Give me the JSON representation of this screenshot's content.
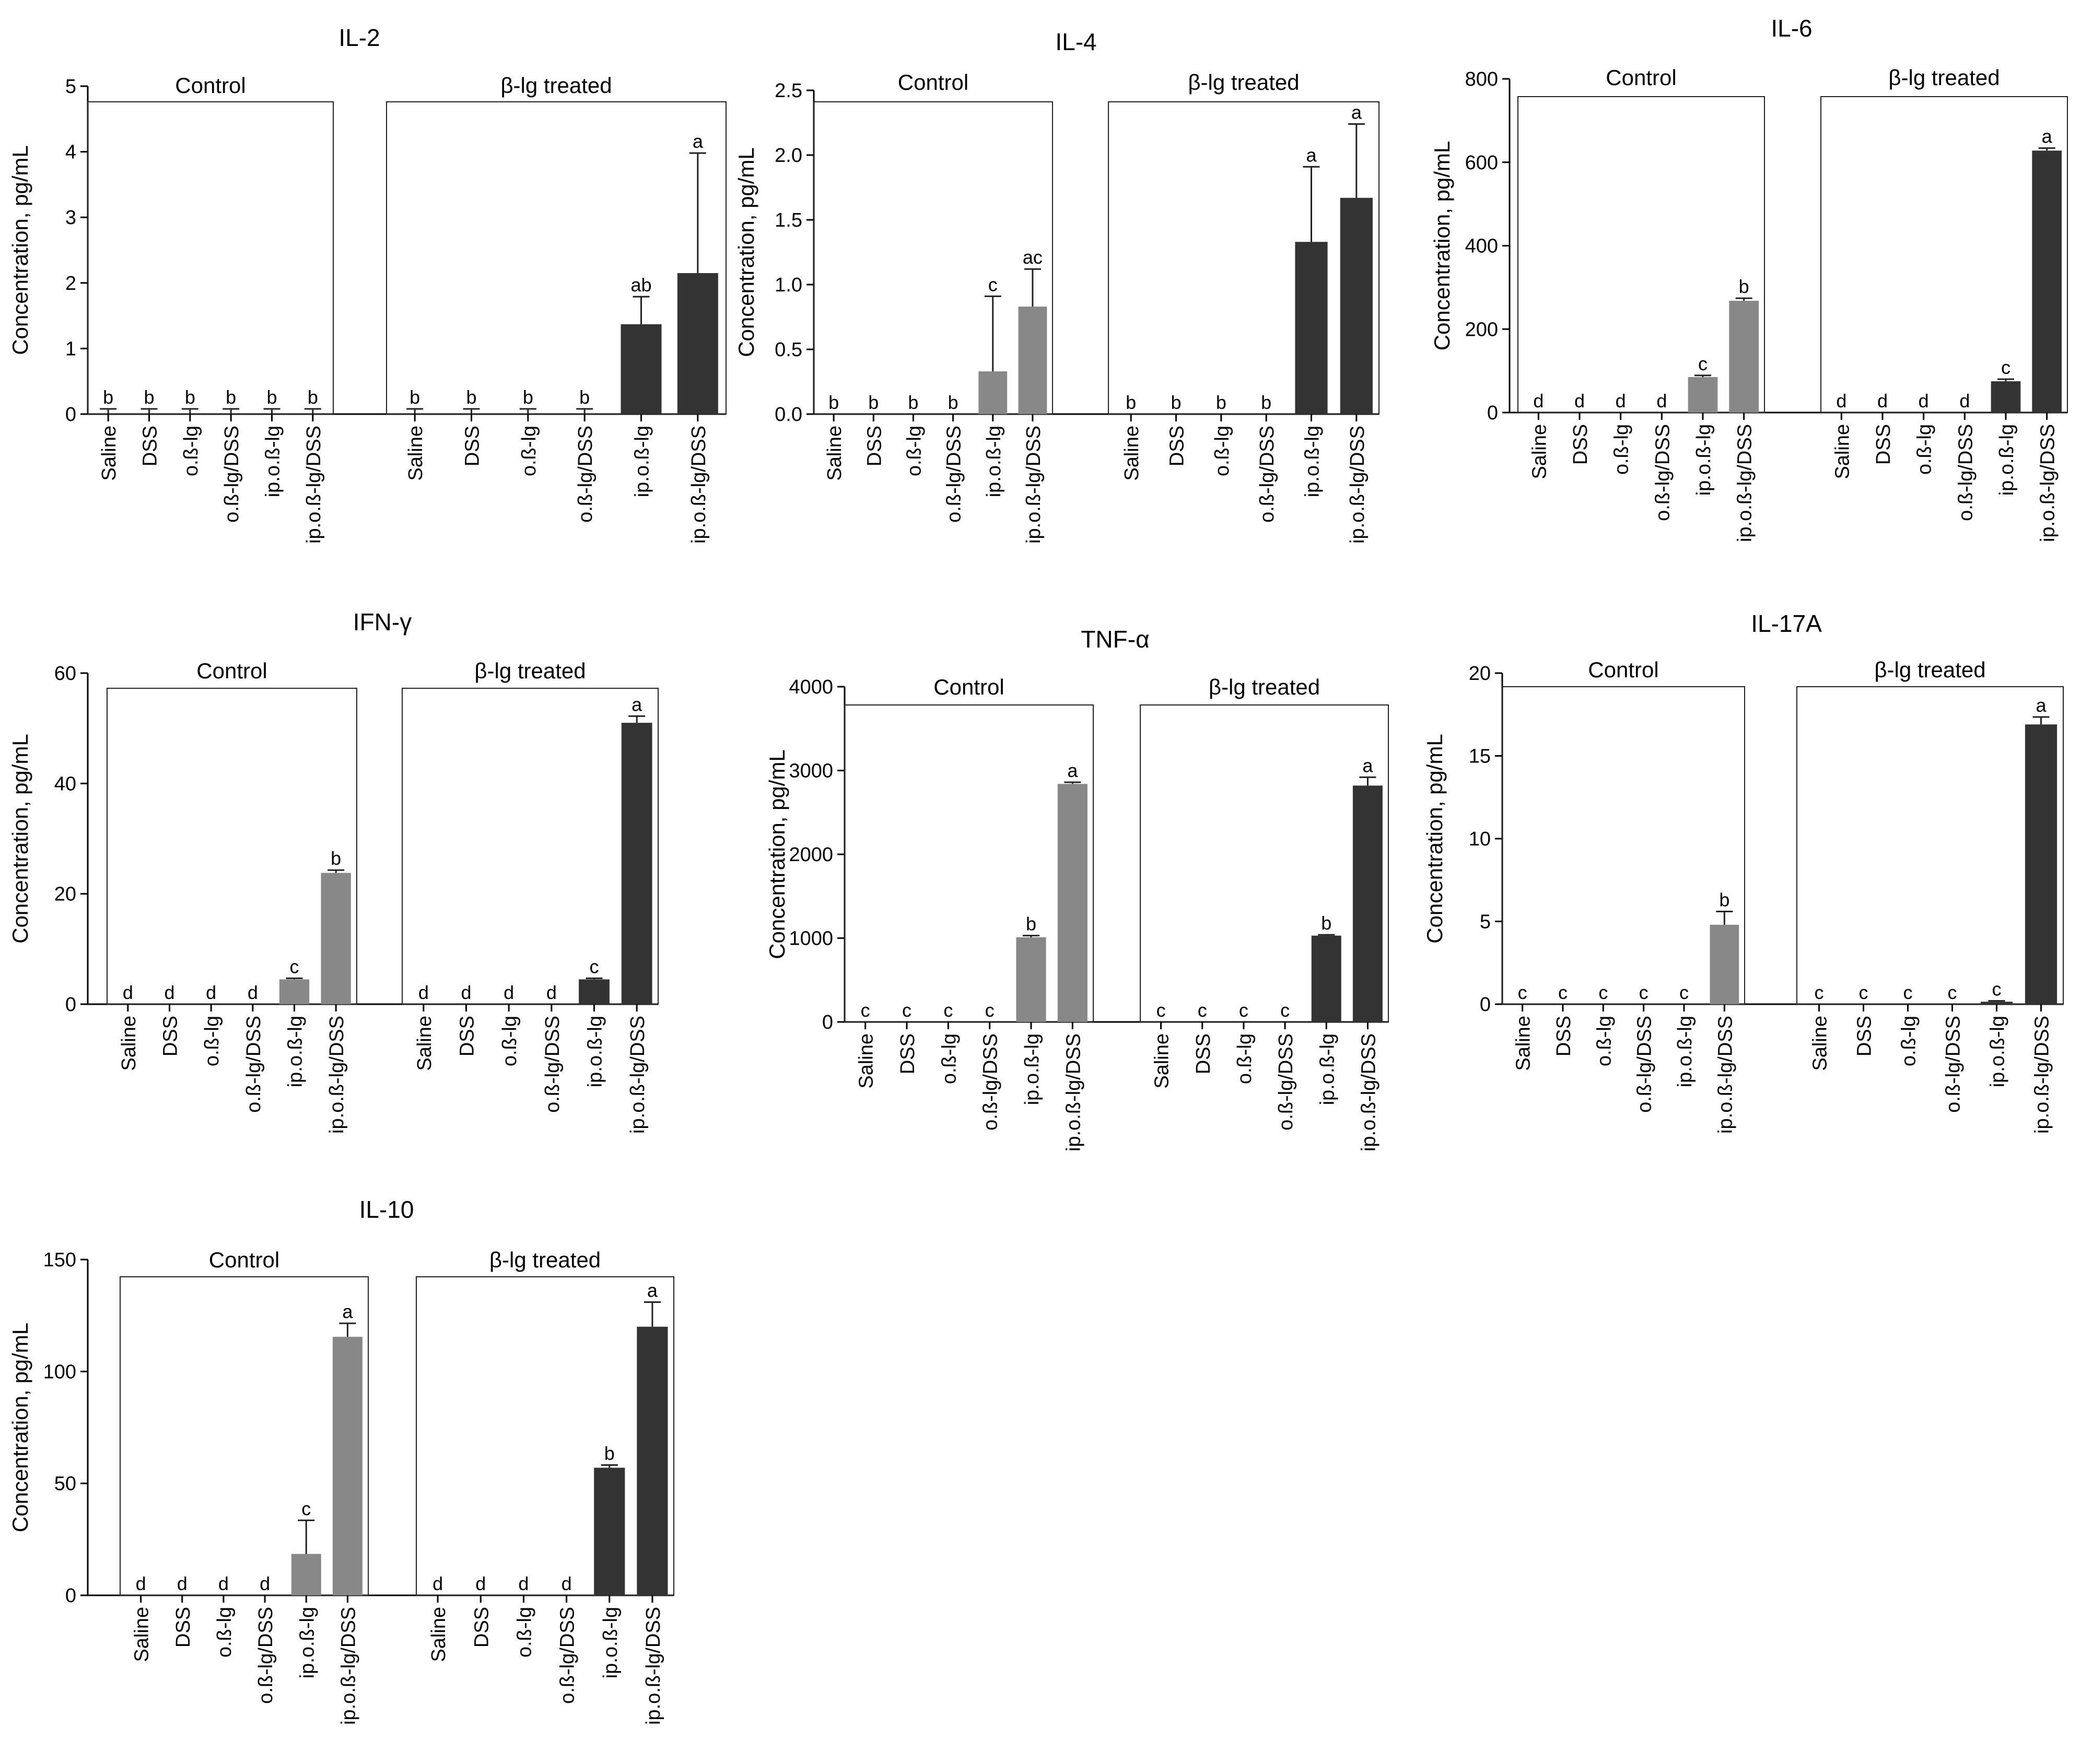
{
  "figure": {
    "y_axis_label": "Concentration, pg/mL",
    "group_labels": [
      "Control",
      "β-lg treated"
    ],
    "colors": {
      "control_bar": "#888888",
      "treated_bar": "#333333",
      "axis": "#000000"
    }
  },
  "chart_data": [
    {
      "type": "bar",
      "title": "IL-2",
      "ylabel": "Concentration, pg/mL",
      "ylim": [
        0,
        5
      ],
      "yticks": [
        0,
        1,
        2,
        3,
        4,
        5
      ],
      "tick_format": "int",
      "categories": [
        "Saline",
        "DSS",
        "o.ß-lg",
        "o.ß-lg/DSS",
        "ip.o.ß-lg",
        "ip.o.ß-lg/DSS"
      ],
      "series": [
        {
          "name": "Control",
          "values": [
            0,
            0,
            0,
            0,
            0,
            0
          ],
          "errors": [
            0.08,
            0.08,
            0.08,
            0.08,
            0.08,
            0.08
          ],
          "letters": [
            "b",
            "b",
            "b",
            "b",
            "b",
            "b"
          ]
        },
        {
          "name": "β-lg treated",
          "values": [
            0,
            0,
            0,
            0,
            1.37,
            2.15
          ],
          "errors": [
            0.08,
            0.08,
            0.08,
            0.08,
            0.42,
            1.83
          ],
          "letters": [
            "b",
            "b",
            "b",
            "b",
            "ab",
            "a"
          ]
        }
      ]
    },
    {
      "type": "bar",
      "title": "IL-4",
      "ylabel": "Concentration, pg/mL",
      "ylim": [
        0,
        2.5
      ],
      "yticks": [
        0,
        0.5,
        1,
        1.5,
        2,
        2.5
      ],
      "tick_format": "1dp",
      "categories": [
        "Saline",
        "DSS",
        "o.ß-lg",
        "o.ß-lg/DSS",
        "ip.o.ß-lg",
        "ip.o.ß-lg/DSS"
      ],
      "series": [
        {
          "name": "Control",
          "values": [
            0,
            0,
            0,
            0,
            0.33,
            0.83
          ],
          "errors": [
            0,
            0,
            0,
            0,
            0.58,
            0.29
          ],
          "letters": [
            "b",
            "b",
            "b",
            "b",
            "c",
            "ac"
          ]
        },
        {
          "name": "β-lg treated",
          "values": [
            0,
            0,
            0,
            0,
            1.33,
            1.67
          ],
          "errors": [
            0,
            0,
            0,
            0,
            0.58,
            0.57
          ],
          "letters": [
            "b",
            "b",
            "b",
            "b",
            "a",
            "a"
          ]
        }
      ]
    },
    {
      "type": "bar",
      "title": "IL-6",
      "ylabel": "Concentration, pg/mL",
      "ylim": [
        0,
        800
      ],
      "yticks": [
        0,
        200,
        400,
        600,
        800
      ],
      "tick_format": "int",
      "categories": [
        "Saline",
        "DSS",
        "o.ß-lg",
        "o.ß-lg/DSS",
        "ip.o.ß-lg",
        "ip.o.ß-lg/DSS"
      ],
      "series": [
        {
          "name": "Control",
          "values": [
            0,
            0,
            0,
            0,
            85,
            268
          ],
          "errors": [
            0,
            0,
            0,
            0,
            4,
            6
          ],
          "letters": [
            "d",
            "d",
            "d",
            "d",
            "c",
            "b"
          ]
        },
        {
          "name": "β-lg treated",
          "values": [
            0,
            0,
            0,
            0,
            75,
            628
          ],
          "errors": [
            0,
            0,
            0,
            0,
            5,
            6
          ],
          "letters": [
            "d",
            "d",
            "d",
            "d",
            "c",
            "a"
          ]
        }
      ]
    },
    {
      "type": "bar",
      "title": "IFN-γ",
      "ylabel": "Concentration, pg/mL",
      "ylim": [
        0,
        60
      ],
      "yticks": [
        0,
        20,
        40,
        60
      ],
      "tick_format": "int",
      "categories": [
        "Saline",
        "DSS",
        "o.ß-lg",
        "o.ß-lg/DSS",
        "ip.o.ß-lg",
        "ip.o.ß-lg/DSS"
      ],
      "series": [
        {
          "name": "Control",
          "values": [
            0,
            0,
            0,
            0,
            4.5,
            23.8
          ],
          "errors": [
            0,
            0,
            0,
            0,
            0.2,
            0.5
          ],
          "letters": [
            "d",
            "d",
            "d",
            "d",
            "c",
            "b"
          ]
        },
        {
          "name": "β-lg treated",
          "values": [
            0,
            0,
            0,
            0,
            4.5,
            51
          ],
          "errors": [
            0,
            0,
            0,
            0,
            0.2,
            1.2
          ],
          "letters": [
            "d",
            "d",
            "d",
            "d",
            "c",
            "a"
          ]
        }
      ]
    },
    {
      "type": "bar",
      "title": "TNF-α",
      "ylabel": "Concentration, pg/mL",
      "ylim": [
        0,
        4000
      ],
      "yticks": [
        0,
        1000,
        2000,
        3000,
        4000
      ],
      "tick_format": "int",
      "categories": [
        "Saline",
        "DSS",
        "o.ß-lg",
        "o.ß-lg/DSS",
        "ip.o.ß-lg",
        "ip.o.ß-lg/DSS"
      ],
      "series": [
        {
          "name": "Control",
          "values": [
            0,
            0,
            0,
            0,
            1010,
            2840
          ],
          "errors": [
            0,
            0,
            0,
            0,
            20,
            20
          ],
          "letters": [
            "c",
            "c",
            "c",
            "c",
            "b",
            "a"
          ]
        },
        {
          "name": "β-lg treated",
          "values": [
            0,
            0,
            0,
            0,
            1030,
            2820
          ],
          "errors": [
            0,
            0,
            0,
            0,
            10,
            100
          ],
          "letters": [
            "c",
            "c",
            "c",
            "c",
            "b",
            "a"
          ]
        }
      ]
    },
    {
      "type": "bar",
      "title": "IL-17A",
      "ylabel": "Concentration, pg/mL",
      "ylim": [
        0,
        20
      ],
      "yticks": [
        0,
        5,
        10,
        15,
        20
      ],
      "tick_format": "int",
      "categories": [
        "Saline",
        "DSS",
        "o.ß-lg",
        "o.ß-lg/DSS",
        "ip.o.ß-lg",
        "ip.o.ß-lg/DSS"
      ],
      "series": [
        {
          "name": "Control",
          "values": [
            0,
            0,
            0,
            0,
            0,
            4.8
          ],
          "errors": [
            0,
            0,
            0,
            0,
            0,
            0.8
          ],
          "letters": [
            "c",
            "c",
            "c",
            "c",
            "c",
            "b"
          ]
        },
        {
          "name": "β-lg treated",
          "values": [
            0,
            0,
            0,
            0,
            0.15,
            16.9
          ],
          "errors": [
            0,
            0,
            0,
            0,
            0.05,
            0.45
          ],
          "letters": [
            "c",
            "c",
            "c",
            "c",
            "c",
            "a"
          ]
        }
      ]
    },
    {
      "type": "bar",
      "title": "IL-10",
      "ylabel": "Concentration, pg/mL",
      "ylim": [
        0,
        150
      ],
      "yticks": [
        0,
        50,
        100,
        150
      ],
      "tick_format": "int",
      "categories": [
        "Saline",
        "DSS",
        "o.ß-lg",
        "o.ß-lg/DSS",
        "ip.o.ß-lg",
        "ip.o.ß-lg/DSS"
      ],
      "series": [
        {
          "name": "Control",
          "values": [
            0,
            0,
            0,
            0,
            18.5,
            115.5
          ],
          "errors": [
            0,
            0,
            0,
            0,
            15,
            6
          ],
          "letters": [
            "d",
            "d",
            "d",
            "d",
            "c",
            "a"
          ]
        },
        {
          "name": "β-lg treated",
          "values": [
            0,
            0,
            0,
            0,
            57,
            120
          ],
          "errors": [
            0,
            0,
            0,
            0,
            1.2,
            11
          ],
          "letters": [
            "d",
            "d",
            "d",
            "d",
            "b",
            "a"
          ]
        }
      ]
    }
  ]
}
